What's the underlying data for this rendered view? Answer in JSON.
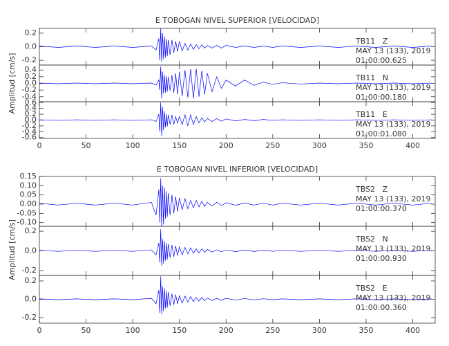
{
  "chart_data": [
    {
      "type": "line",
      "title": "E TOBOGAN NIVEL SUPERIOR [VELOCIDAD]",
      "y_label": "Amplitud [cm/s]",
      "color": "#0000ff",
      "xlim": [
        0,
        424
      ],
      "xticks": [
        0,
        50,
        100,
        150,
        200,
        250,
        300,
        350,
        400
      ],
      "x": [
        0,
        20,
        40,
        60,
        80,
        100,
        120,
        125,
        128,
        129,
        130,
        131,
        132,
        133,
        134,
        135,
        136,
        137,
        138,
        140,
        142,
        144,
        146,
        148,
        150,
        153,
        156,
        159,
        162,
        165,
        168,
        171,
        174,
        177,
        180,
        185,
        190,
        195,
        200,
        210,
        220,
        230,
        240,
        250,
        260,
        280,
        300,
        320,
        340,
        360,
        380,
        400,
        420
      ],
      "panels": [
        {
          "station": "TB11   Z",
          "date": "MAY 13 (133), 2019",
          "time": "01:00:00.625",
          "ylim": [
            -0.27,
            0.27
          ],
          "yticks": [
            -0.2,
            {
              "value": 0,
              "label": "0.0"
            },
            0.2
          ],
          "values": [
            0.01,
            -0.01,
            0.01,
            -0.01,
            0.01,
            -0.01,
            0.01,
            -0.05,
            0.12,
            -0.2,
            0.27,
            -0.22,
            0.2,
            -0.18,
            0.15,
            -0.16,
            0.12,
            -0.14,
            0.1,
            -0.12,
            0.1,
            -0.09,
            0.08,
            -0.07,
            0.08,
            -0.06,
            0.05,
            -0.05,
            0.04,
            -0.04,
            0.03,
            -0.03,
            0.03,
            -0.02,
            0.02,
            -0.02,
            0.02,
            -0.02,
            0.02,
            -0.01,
            0.01,
            -0.01,
            0.01,
            -0.01,
            0.01,
            -0.01,
            0.01,
            -0.01,
            0.01,
            -0.01,
            0.01,
            -0.01,
            0.01
          ]
        },
        {
          "station": "TB11   N",
          "date": "MAY 13 (133), 2019",
          "time": "01:00:00.180",
          "ylim": [
            -0.55,
            0.55
          ],
          "yticks": [
            -0.4,
            -0.2,
            {
              "value": 0,
              "label": "0.0"
            },
            0.2,
            0.4
          ],
          "values": [
            0.01,
            -0.01,
            0.01,
            -0.01,
            0.01,
            -0.01,
            0.01,
            -0.05,
            0.1,
            -0.2,
            0.5,
            -0.45,
            0.35,
            -0.3,
            0.25,
            -0.28,
            0.22,
            -0.25,
            0.2,
            -0.22,
            0.25,
            -0.28,
            0.3,
            -0.33,
            0.35,
            -0.38,
            0.4,
            -0.42,
            0.43,
            -0.45,
            0.44,
            -0.4,
            0.38,
            -0.33,
            0.3,
            -0.25,
            0.2,
            -0.15,
            0.1,
            -0.08,
            0.1,
            -0.06,
            0.04,
            -0.03,
            0.02,
            -0.02,
            0.01,
            -0.01,
            0.01,
            -0.01,
            0.01,
            -0.01,
            0.01
          ]
        },
        {
          "station": "TB11   E",
          "date": "MAY 13 (133), 2019",
          "time": "01:00:01.080",
          "ylim": [
            -0.63,
            0.63
          ],
          "yticks": [
            -0.6,
            -0.4,
            -0.2,
            {
              "value": 0,
              "label": "0.0"
            },
            0.2,
            0.4,
            0.6
          ],
          "values": [
            0.01,
            -0.01,
            0.01,
            -0.01,
            0.01,
            -0.01,
            0.01,
            -0.05,
            0.2,
            -0.4,
            0.6,
            -0.55,
            0.45,
            -0.35,
            0.3,
            -0.25,
            0.2,
            -0.22,
            0.18,
            -0.15,
            0.18,
            -0.15,
            0.12,
            -0.1,
            0.12,
            -0.15,
            0.18,
            -0.2,
            0.18,
            -0.15,
            0.12,
            -0.1,
            0.08,
            -0.07,
            0.06,
            -0.05,
            0.05,
            -0.04,
            0.04,
            -0.03,
            0.02,
            -0.02,
            0.02,
            -0.01,
            0.01,
            -0.01,
            0.01,
            -0.01,
            0.01,
            -0.01,
            0.01,
            -0.01,
            0.01
          ]
        }
      ]
    },
    {
      "type": "line",
      "title": "E TOBOGAN NIVEL INFERIOR [VELOCIDAD]",
      "y_label": "Amplitud [cm/s]",
      "color": "#0000ff",
      "xlim": [
        0,
        424
      ],
      "xticks": [
        0,
        50,
        100,
        150,
        200,
        250,
        300,
        350,
        400
      ],
      "x": [
        0,
        20,
        40,
        60,
        80,
        100,
        120,
        125,
        128,
        129,
        130,
        131,
        132,
        133,
        134,
        135,
        136,
        137,
        138,
        140,
        142,
        144,
        146,
        148,
        150,
        153,
        156,
        159,
        162,
        165,
        168,
        171,
        174,
        177,
        180,
        185,
        190,
        195,
        200,
        210,
        220,
        230,
        240,
        250,
        260,
        280,
        300,
        320,
        340,
        360,
        380,
        400,
        420
      ],
      "panels": [
        {
          "station": "TBS2   Z",
          "date": "MAY 13 (133), 2019",
          "time": "01:00:00.370",
          "ylim": [
            -0.12,
            0.15
          ],
          "yticks": [
            {
              "value": -0.1,
              "label": "-0.10"
            },
            -0.05,
            {
              "value": 0,
              "label": "0.00"
            },
            0.05,
            {
              "value": 0.1,
              "label": "0.10"
            },
            0.15
          ],
          "values": [
            0.005,
            -0.005,
            0.005,
            -0.005,
            0.005,
            -0.005,
            0.01,
            -0.06,
            0.08,
            -0.1,
            0.14,
            -0.12,
            0.1,
            -0.11,
            0.09,
            -0.08,
            0.07,
            -0.07,
            0.06,
            -0.06,
            0.05,
            -0.05,
            0.04,
            -0.04,
            0.035,
            -0.03,
            0.03,
            -0.025,
            0.02,
            -0.02,
            0.02,
            -0.015,
            0.015,
            -0.012,
            0.01,
            -0.01,
            0.01,
            -0.008,
            0.008,
            -0.006,
            0.006,
            -0.005,
            0.005,
            -0.005,
            0.005,
            -0.005,
            0.005,
            -0.005,
            0.005,
            -0.005,
            0.005,
            -0.005,
            0.005
          ]
        },
        {
          "station": "TBS2   N",
          "date": "MAY 13 (133), 2019",
          "time": "01:00:00.930",
          "ylim": [
            -0.25,
            0.25
          ],
          "yticks": [
            -0.2,
            {
              "value": 0,
              "label": "0.0"
            },
            0.2
          ],
          "values": [
            0.005,
            -0.005,
            0.005,
            -0.005,
            0.005,
            -0.005,
            0.01,
            -0.04,
            0.08,
            -0.12,
            0.22,
            -0.15,
            0.12,
            -0.13,
            0.1,
            -0.1,
            0.08,
            -0.09,
            0.07,
            -0.07,
            0.06,
            -0.06,
            0.05,
            -0.05,
            0.04,
            -0.04,
            0.035,
            -0.03,
            0.03,
            -0.025,
            0.02,
            -0.02,
            0.02,
            -0.015,
            0.015,
            -0.012,
            0.01,
            -0.01,
            0.01,
            -0.008,
            0.008,
            -0.006,
            0.006,
            -0.005,
            0.005,
            -0.005,
            0.005,
            -0.005,
            0.005,
            -0.005,
            0.005,
            -0.005,
            0.005
          ]
        },
        {
          "station": "TBS2   E",
          "date": "MAY 13 (133), 2019",
          "time": "01:00:00.360",
          "ylim": [
            -0.26,
            0.26
          ],
          "yticks": [
            -0.2,
            {
              "value": 0,
              "label": "0.0"
            },
            0.2
          ],
          "values": [
            0.005,
            -0.005,
            0.005,
            -0.005,
            0.005,
            -0.005,
            0.01,
            -0.05,
            0.1,
            -0.15,
            0.25,
            -0.16,
            0.14,
            -0.13,
            0.12,
            -0.1,
            0.09,
            -0.09,
            0.08,
            -0.07,
            0.06,
            -0.06,
            0.05,
            -0.05,
            0.04,
            -0.04,
            0.035,
            -0.03,
            0.03,
            -0.025,
            0.02,
            -0.02,
            0.02,
            -0.015,
            0.015,
            -0.012,
            0.01,
            -0.01,
            0.01,
            -0.008,
            0.008,
            -0.006,
            0.006,
            -0.005,
            0.005,
            -0.005,
            0.005,
            -0.005,
            0.005,
            -0.005,
            0.005,
            -0.005,
            0.005
          ]
        }
      ]
    }
  ]
}
